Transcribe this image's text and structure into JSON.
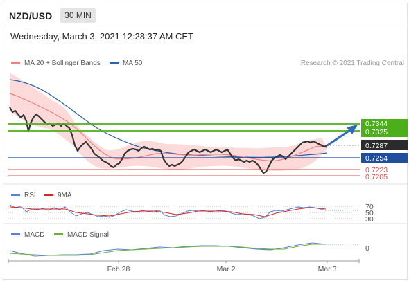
{
  "header": {
    "symbol": "NZD/USD",
    "timeframe_button": "30 MIN"
  },
  "datetime": "Wednesday, March 3, 2021 12:28:37 AM CET",
  "legend": {
    "ma20_bollinger": "MA 20 + Bollinger Bands",
    "ma50": "MA 50",
    "credit": "Research © 2021 Trading Central"
  },
  "price_levels": {
    "resistance_2": "0.7344",
    "resistance_1": "0.7325",
    "current": "0.7287",
    "pivot": "0.7254",
    "support_1": "0.7223",
    "support_2": "0.7205"
  },
  "rsi_panel": {
    "rsi_label": "RSI",
    "ma9_label": "9MA",
    "level_70": "70",
    "level_50": "50",
    "level_30": "30"
  },
  "macd_panel": {
    "macd_label": "MACD",
    "signal_label": "MACD Signal",
    "zero_label": "0"
  },
  "x_axis": {
    "labels": [
      "Feb 28",
      "Mar 2",
      "Mar 3"
    ]
  },
  "colors": {
    "green_level": "#4caf1a",
    "blue_level": "#1f4e9c",
    "red_level": "#e05252",
    "bollinger_fill": "#fbd4d4",
    "ma20": "#f08080",
    "ma50": "#2f5fa8",
    "current_box": "#2b2b2b",
    "arrow": "#2e6ab8",
    "rsi": "#5b7fd6",
    "rsi_ma": "#d62828",
    "macd": "#5b7fd6",
    "macd_signal": "#6ab03a"
  }
}
